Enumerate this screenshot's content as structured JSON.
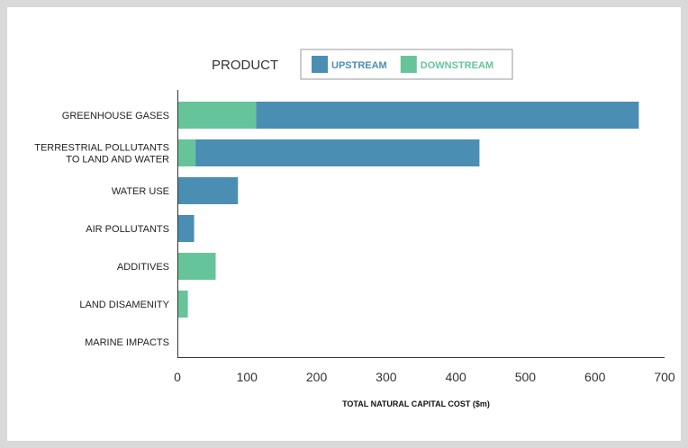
{
  "chart_data": {
    "type": "bar",
    "orientation": "horizontal",
    "stacked": true,
    "title": "",
    "legend_title": "PRODUCT",
    "xlabel": "TOTAL NATURAL CAPITAL COST ($m)",
    "ylabel": "",
    "xlim": [
      0,
      700
    ],
    "xticks": [
      0,
      100,
      200,
      300,
      400,
      500,
      600,
      700
    ],
    "grid": false,
    "legend_position": "top",
    "categories": [
      [
        "GREENHOUSE GASES"
      ],
      [
        "TERRESTRIAL POLLUTANTS",
        "TO LAND AND WATER"
      ],
      [
        "WATER USE"
      ],
      [
        "AIR POLLUTANTS"
      ],
      [
        "ADDITIVES"
      ],
      [
        "LAND DISAMENITY"
      ],
      [
        "MARINE IMPACTS"
      ]
    ],
    "series": [
      {
        "name": "DOWNSTREAM",
        "color": "#66c49a",
        "values": [
          113,
          26,
          0,
          0,
          55,
          15,
          0
        ]
      },
      {
        "name": "UPSTREAM",
        "color": "#4a8eb3",
        "values": [
          550,
          408,
          87,
          24,
          0,
          0,
          0
        ]
      }
    ],
    "legend_order": [
      "UPSTREAM",
      "DOWNSTREAM"
    ]
  }
}
